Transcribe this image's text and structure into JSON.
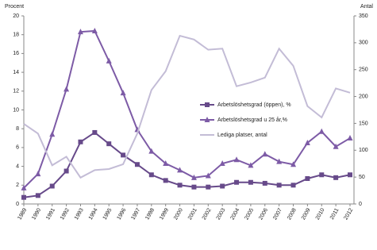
{
  "chart_data": {
    "type": "line",
    "y_label": "Procent",
    "y2_label": "Antal",
    "categories": [
      "1989",
      "1990",
      "1991",
      "1992",
      "1993",
      "1994",
      "1995",
      "1996",
      "1997",
      "1998",
      "1999",
      "2000",
      "2001",
      "2002",
      "2003",
      "2004",
      "2005",
      "2006",
      "2007",
      "2008",
      "2009",
      "2010",
      "2011",
      "2012"
    ],
    "ylim": [
      0,
      20
    ],
    "yticks": [
      0,
      2,
      4,
      6,
      8,
      10,
      12,
      14,
      16,
      18,
      20
    ],
    "y2lim": [
      0,
      350
    ],
    "y2ticks": [
      0,
      50,
      100,
      150,
      200,
      250,
      300,
      350
    ],
    "grid": false,
    "legend": "center",
    "series": [
      {
        "name": "Arbetslöshetsgrad (öppen), %",
        "color": "#674a8a",
        "marker": "square",
        "values": [
          0.7,
          0.9,
          1.9,
          3.5,
          6.6,
          7.6,
          6.4,
          5.2,
          4.2,
          3.1,
          2.5,
          2.0,
          1.8,
          1.8,
          1.9,
          2.3,
          2.3,
          2.2,
          2.0,
          2.0,
          2.7,
          3.1,
          2.8,
          3.1
        ]
      },
      {
        "name": "Arbetslöshetsgrad u 25 år,%",
        "color": "#7d5ba6",
        "marker": "triangle",
        "values": [
          1.7,
          3.2,
          7.4,
          12.2,
          18.3,
          18.4,
          15.2,
          11.8,
          7.9,
          5.6,
          4.3,
          3.6,
          2.8,
          3.0,
          4.3,
          4.7,
          4.1,
          5.3,
          4.5,
          4.2,
          6.5,
          7.7,
          6.1,
          7.0
        ]
      },
      {
        "name": "Lediga platser, antal",
        "color": "#c3bcd6",
        "marker": "none",
        "axis": "y2",
        "values": [
          149,
          131,
          72,
          88,
          49,
          63,
          65,
          74,
          131,
          212,
          247,
          313,
          306,
          287,
          289,
          219,
          226,
          235,
          289,
          257,
          182,
          161,
          215,
          207
        ]
      }
    ]
  }
}
